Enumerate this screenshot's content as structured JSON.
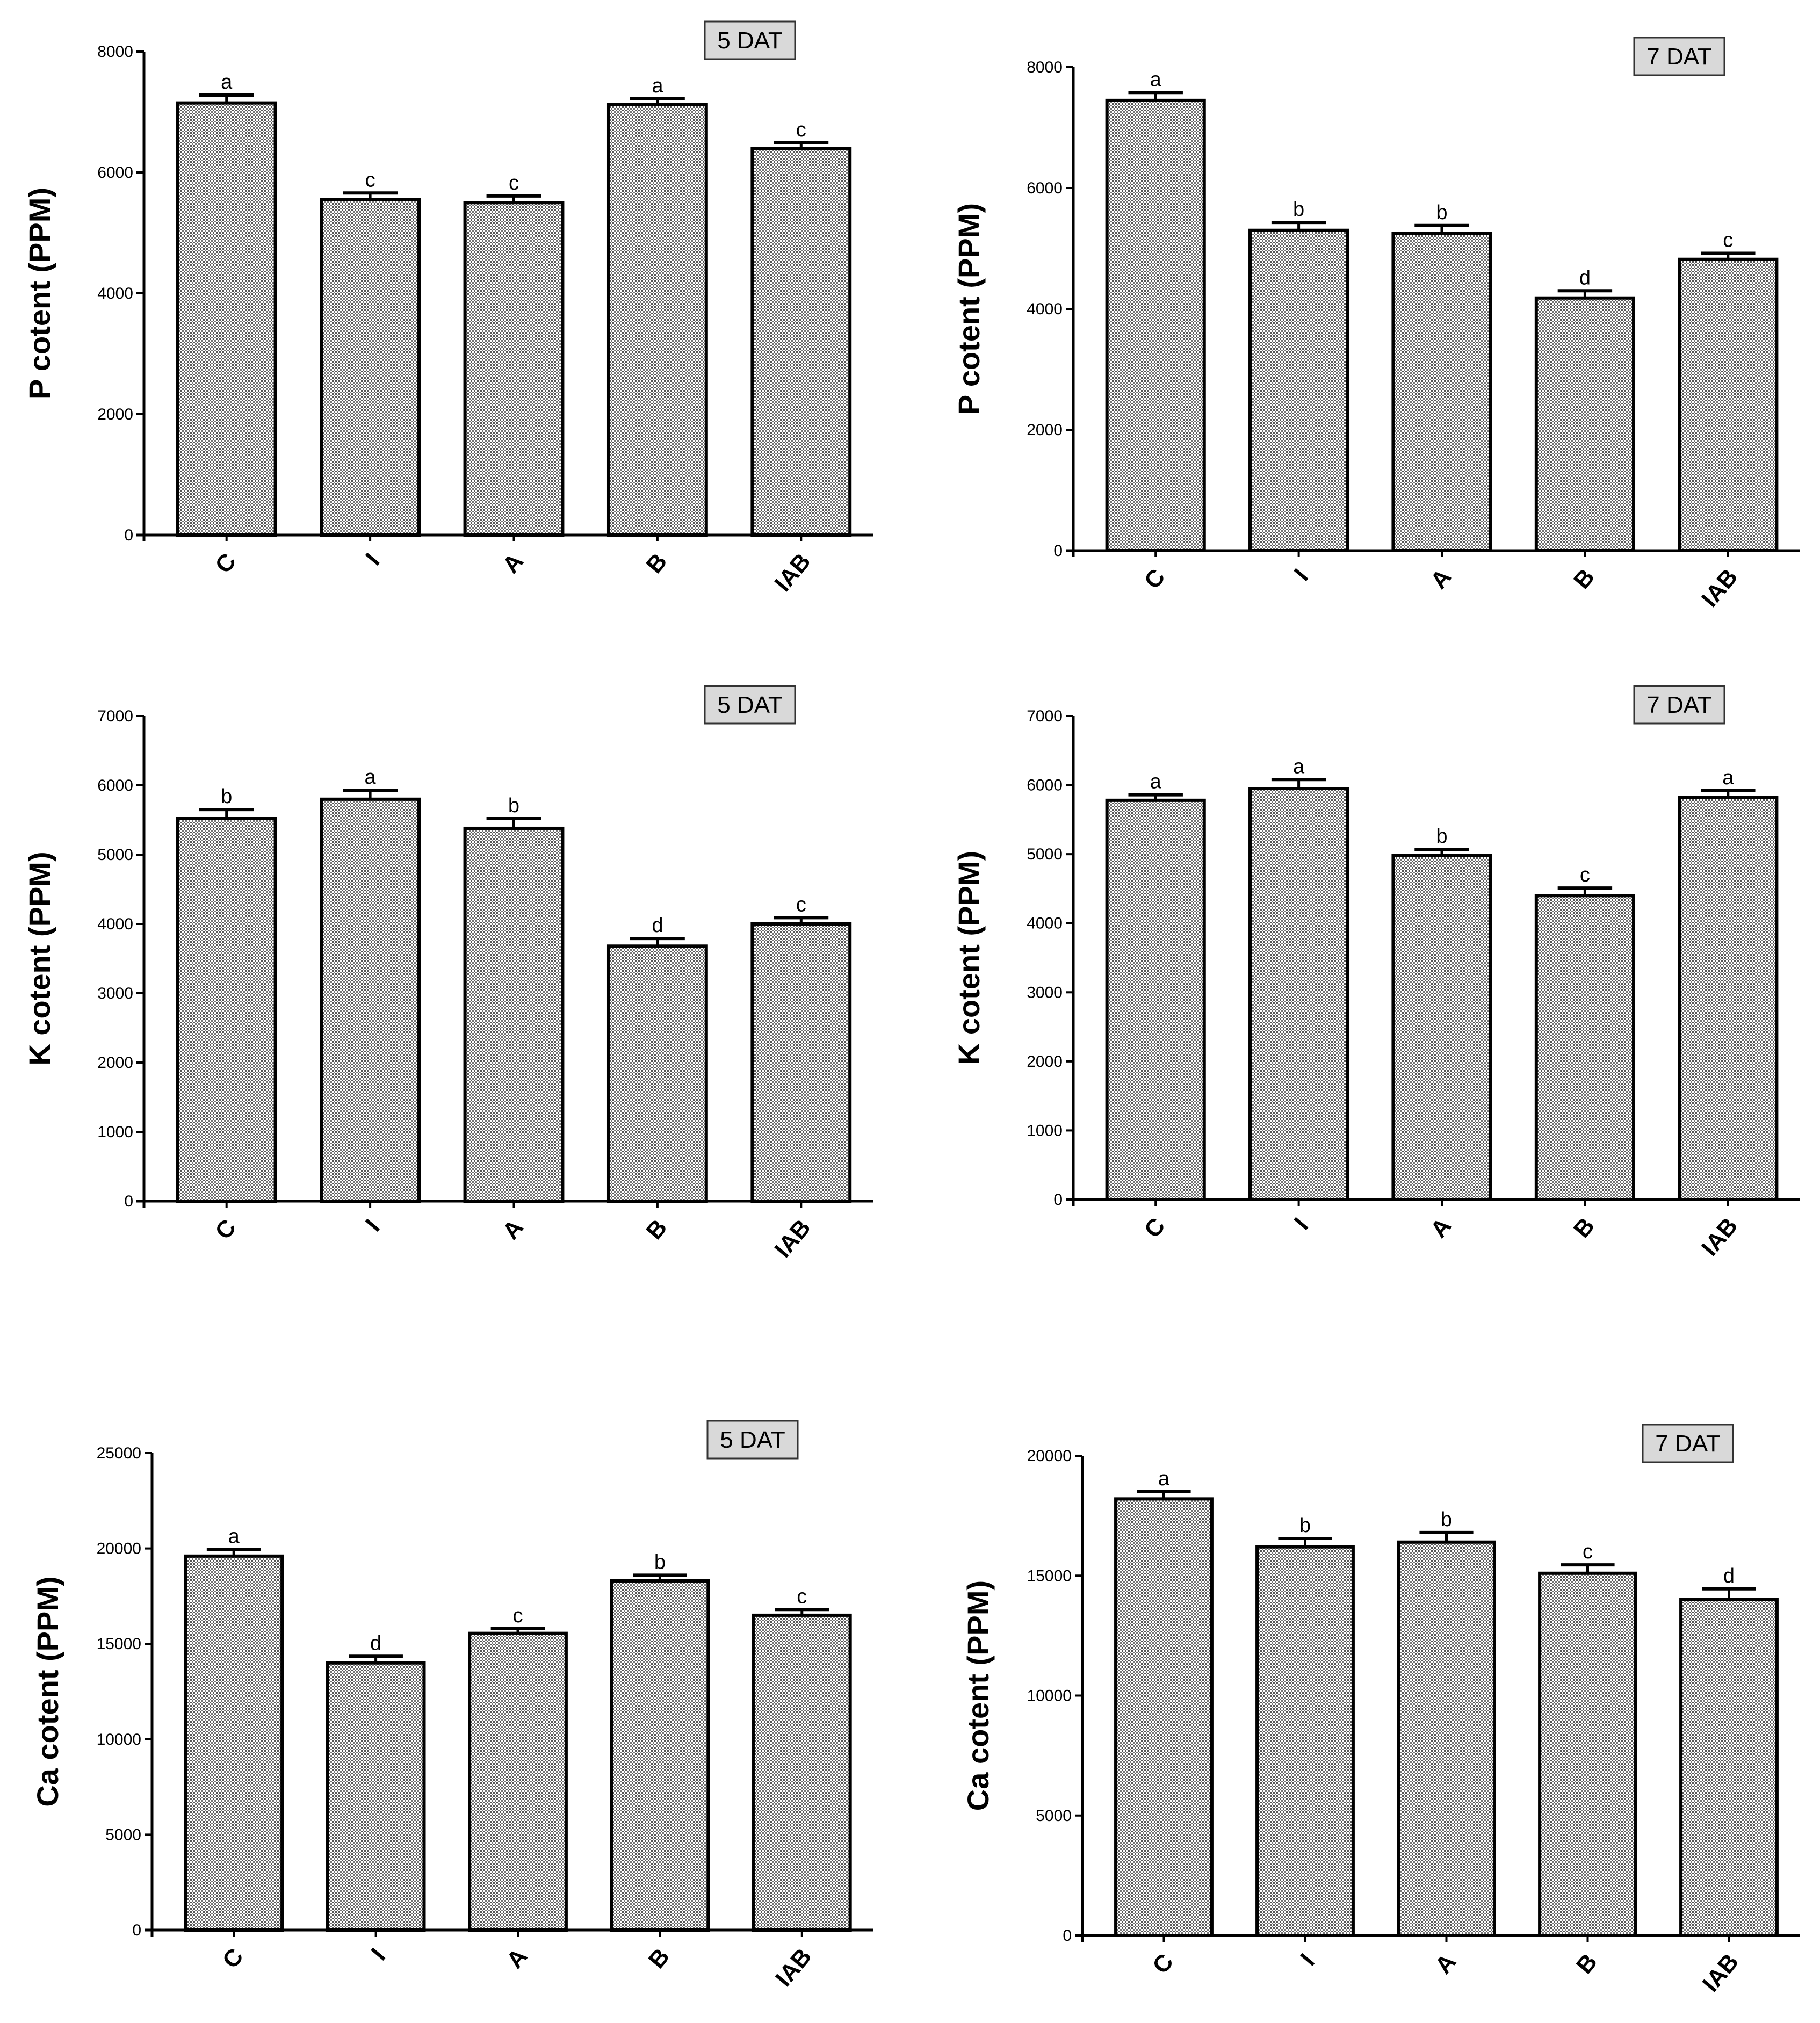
{
  "colors": {
    "bar_stroke": "#000000",
    "bar_dot": "#555555",
    "badge_fill": "#d9d9d9",
    "axis": "#000000"
  },
  "chart_data": [
    {
      "type": "bar",
      "panel": "top-left",
      "badge": "5 DAT",
      "ylabel": "P cotent (PPM)",
      "xlabel": "",
      "categories": [
        "C",
        "I",
        "A",
        "B",
        "IAB"
      ],
      "values": [
        7150,
        5550,
        5500,
        7120,
        6400
      ],
      "errors": [
        130,
        110,
        110,
        100,
        90
      ],
      "letters": [
        "a",
        "c",
        "c",
        "a",
        "c"
      ],
      "ylim": [
        0,
        8000
      ],
      "yticks": [
        0,
        2000,
        4000,
        6000,
        8000
      ],
      "grid": false
    },
    {
      "type": "bar",
      "panel": "top-right",
      "badge": "7 DAT",
      "ylabel": "P cotent (PPM)",
      "xlabel": "",
      "categories": [
        "C",
        "I",
        "A",
        "B",
        "IAB"
      ],
      "values": [
        7450,
        5300,
        5250,
        4180,
        4820
      ],
      "errors": [
        130,
        130,
        130,
        120,
        100
      ],
      "letters": [
        "a",
        "b",
        "b",
        "d",
        "c"
      ],
      "ylim": [
        0,
        8000
      ],
      "yticks": [
        0,
        2000,
        4000,
        6000,
        8000
      ],
      "grid": false
    },
    {
      "type": "bar",
      "panel": "middle-left",
      "badge": "5 DAT",
      "ylabel": "K cotent (PPM)",
      "xlabel": "",
      "categories": [
        "C",
        "I",
        "A",
        "B",
        "IAB"
      ],
      "values": [
        5520,
        5800,
        5380,
        3680,
        4000
      ],
      "errors": [
        130,
        130,
        140,
        110,
        90
      ],
      "letters": [
        "b",
        "a",
        "b",
        "d",
        "c"
      ],
      "ylim": [
        0,
        7000
      ],
      "yticks": [
        0,
        1000,
        2000,
        3000,
        4000,
        5000,
        6000,
        7000
      ],
      "grid": false
    },
    {
      "type": "bar",
      "panel": "middle-right",
      "badge": "7 DAT",
      "ylabel": "K cotent (PPM)",
      "xlabel": "",
      "categories": [
        "C",
        "I",
        "A",
        "B",
        "IAB"
      ],
      "values": [
        5780,
        5950,
        4980,
        4400,
        5820
      ],
      "errors": [
        80,
        130,
        90,
        110,
        100
      ],
      "letters": [
        "a",
        "a",
        "b",
        "c",
        "a"
      ],
      "ylim": [
        0,
        7000
      ],
      "yticks": [
        0,
        1000,
        2000,
        3000,
        4000,
        5000,
        6000,
        7000
      ],
      "grid": false
    },
    {
      "type": "bar",
      "panel": "bottom-left",
      "badge": "5 DAT",
      "ylabel": "Ca cotent (PPM)",
      "xlabel": "",
      "categories": [
        "C",
        "I",
        "A",
        "B",
        "IAB"
      ],
      "values": [
        19600,
        14000,
        15550,
        18300,
        16500
      ],
      "errors": [
        350,
        350,
        250,
        300,
        300
      ],
      "letters": [
        "a",
        "d",
        "c",
        "b",
        "c"
      ],
      "ylim": [
        0,
        25000
      ],
      "yticks": [
        0,
        5000,
        10000,
        15000,
        20000,
        25000
      ],
      "grid": false
    },
    {
      "type": "bar",
      "panel": "bottom-right",
      "badge": "7 DAT",
      "ylabel": "Ca cotent (PPM)",
      "xlabel": "",
      "categories": [
        "C",
        "I",
        "A",
        "B",
        "IAB"
      ],
      "values": [
        18200,
        16200,
        16400,
        15100,
        14000
      ],
      "errors": [
        300,
        350,
        400,
        350,
        450
      ],
      "letters": [
        "a",
        "b",
        "b",
        "c",
        "d"
      ],
      "ylim": [
        0,
        20000
      ],
      "yticks": [
        0,
        5000,
        10000,
        15000,
        20000
      ],
      "grid": false
    }
  ]
}
